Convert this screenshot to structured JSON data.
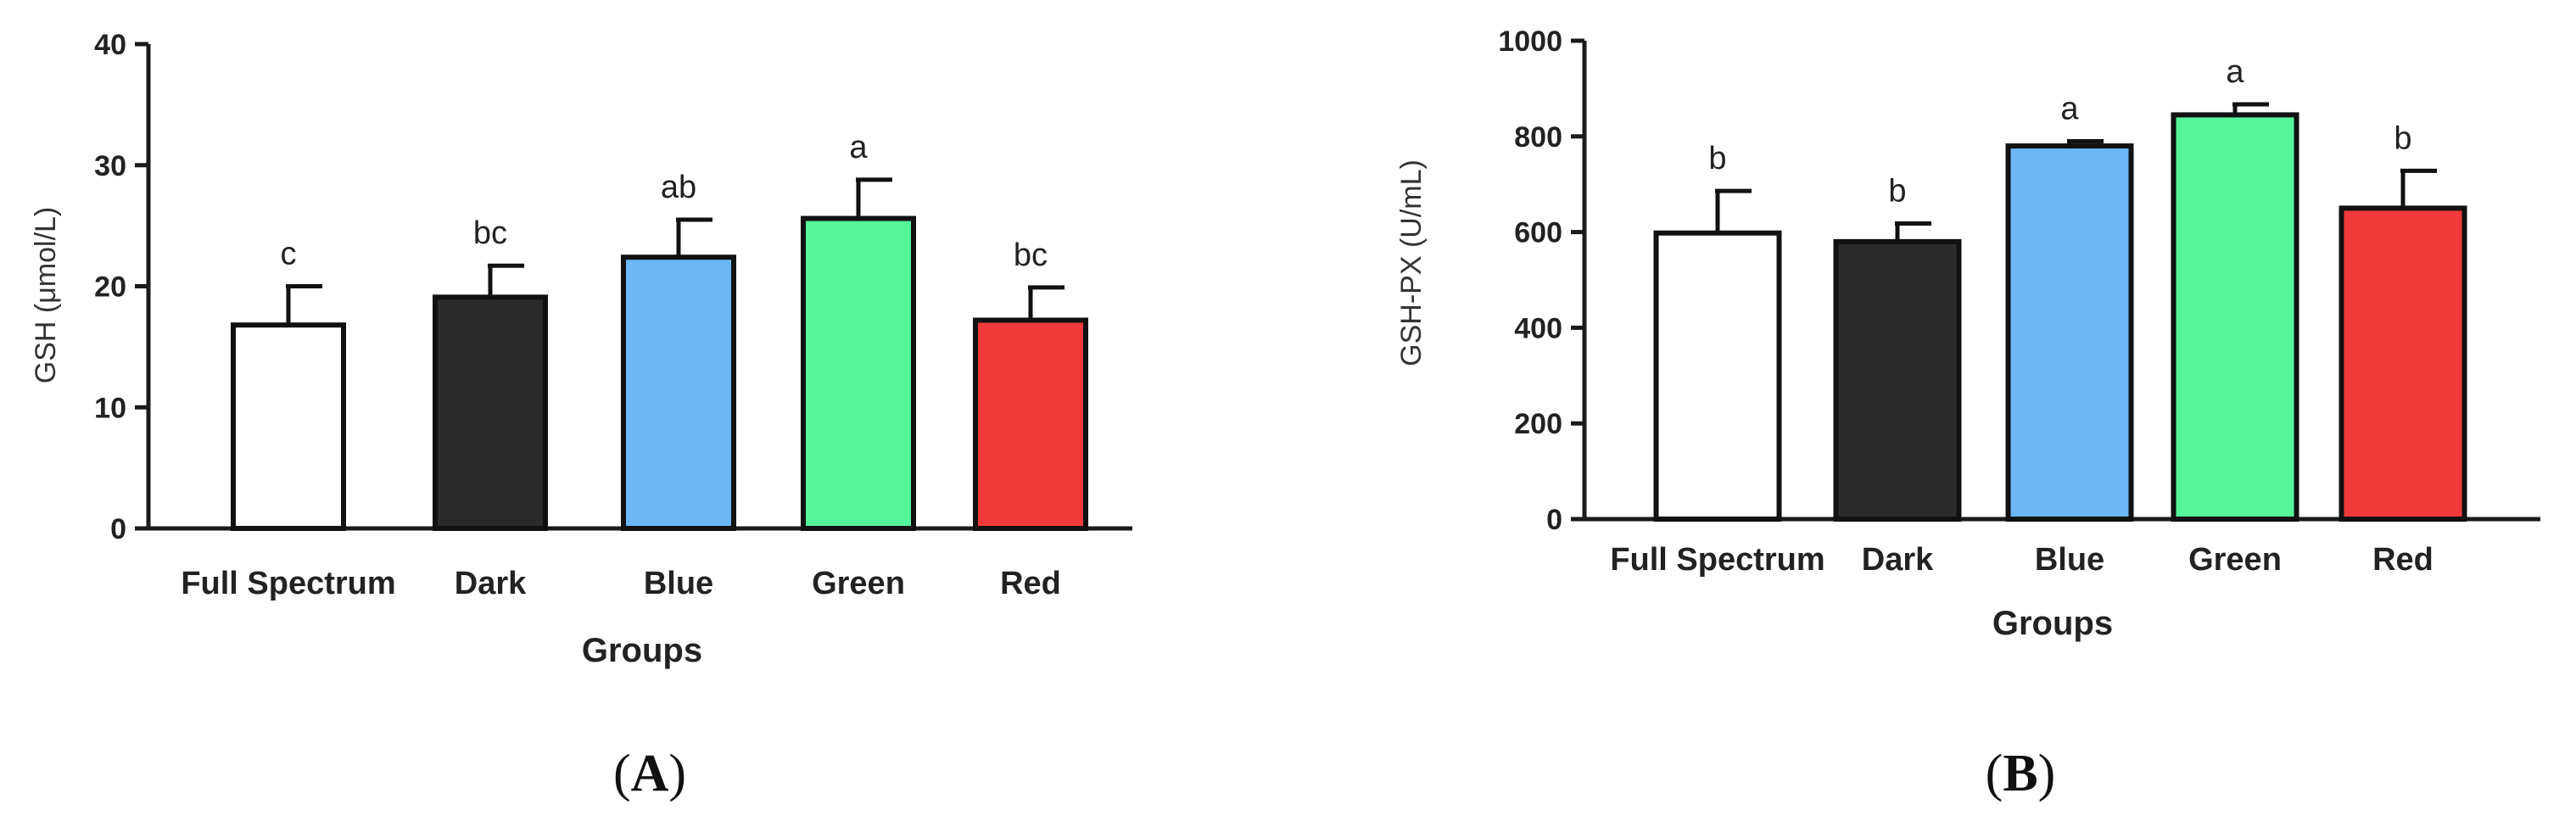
{
  "chart_data": [
    {
      "type": "bar",
      "panel": "A",
      "categories": [
        "Full Spectrum",
        "Dark",
        "Blue",
        "Green",
        "Red"
      ],
      "values": [
        16.8,
        19.1,
        22.4,
        25.6,
        17.2
      ],
      "errors": [
        3.2,
        2.6,
        3.1,
        3.2,
        2.7
      ],
      "significance": [
        "c",
        "bc",
        "ab",
        "a",
        "bc"
      ],
      "colors": [
        "#ffffff",
        "#2b2b2b",
        "#6cb8f7",
        "#55f59a",
        "#f23a3a"
      ],
      "xlabel": "Groups",
      "ylabel": "GSH (μmol/L)",
      "ylim": [
        0,
        40
      ],
      "yticks": [
        0,
        10,
        20,
        30,
        40
      ],
      "ytick_labels": [
        "0",
        "10",
        "20",
        "30",
        "40"
      ]
    },
    {
      "type": "bar",
      "panel": "B",
      "categories": [
        "Full Spectrum",
        "Dark",
        "Blue",
        "Green",
        "Red"
      ],
      "values": [
        598,
        580,
        780,
        845,
        650
      ],
      "errors": [
        88,
        38,
        10,
        22,
        78
      ],
      "significance": [
        "b",
        "b",
        "a",
        "a",
        "b"
      ],
      "colors": [
        "#ffffff",
        "#2b2b2b",
        "#6cb8f7",
        "#55f59a",
        "#f23a3a"
      ],
      "xlabel": "Groups",
      "ylabel": "GSH-PX (U/mL)",
      "ylim": [
        0,
        1000
      ],
      "yticks": [
        0,
        200,
        400,
        600,
        800,
        1000
      ],
      "ytick_labels": [
        "0",
        "200",
        "400",
        "600",
        "800",
        "1000"
      ]
    }
  ],
  "panel_labels": {
    "a": {
      "open": "(",
      "letter": "A",
      "close": ")"
    },
    "b": {
      "open": "(",
      "letter": "B",
      "close": ")"
    }
  }
}
